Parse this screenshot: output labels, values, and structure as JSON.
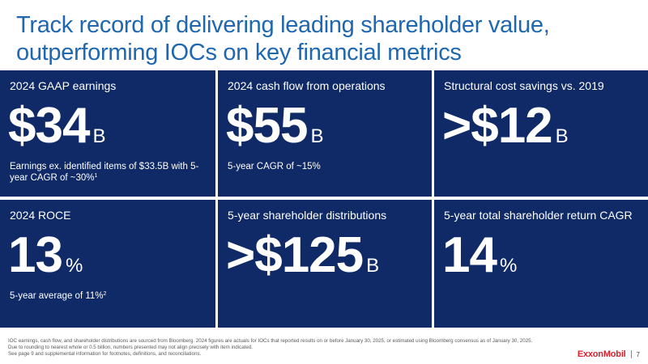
{
  "title": {
    "line1": "Track record of delivering leading shareholder value,",
    "line2": "outperforming IOCs on key financial metrics"
  },
  "cards": [
    {
      "label": "2024 GAAP earnings",
      "value": "$34",
      "unit": "B",
      "note": "Earnings ex. identified items of $33.5B with 5-year CAGR of ~30%",
      "note_sup": "1"
    },
    {
      "label": "2024 cash flow from operations",
      "value": "$55",
      "unit": "B",
      "note": "5-year CAGR of ~15%",
      "note_sup": ""
    },
    {
      "label": "Structural cost savings vs. 2019",
      "value": ">$12",
      "unit": "B",
      "note": "",
      "note_sup": ""
    },
    {
      "label": "2024 ROCE",
      "value": "13",
      "unit": "%",
      "note": "5-year average of 11%",
      "note_sup": "2"
    },
    {
      "label": "5-year shareholder distributions",
      "value": ">$125",
      "unit": "B",
      "note": "",
      "note_sup": ""
    },
    {
      "label": "5-year total shareholder return CAGR",
      "value": "14",
      "unit": "%",
      "note": "",
      "note_sup": ""
    }
  ],
  "footnotes": [
    "IOC earnings, cash flow, and shareholder distributions are sourced from Bloomberg. 2024 figures are actuals for IOCs that reported results on or before January 30, 2025, or estimated using Bloomberg consensus as of January 30, 2025.",
    "Due to rounding to nearest whole or 0.5 billion, numbers presented may not align precisely with item indicated.",
    "See page 9 and supplemental information for footnotes, definitions, and reconciliations."
  ],
  "brand": {
    "logo_text": "ExxonMobil",
    "page_number": "7",
    "accent_color": "#d7212d",
    "card_color": "#0f2a66",
    "title_color": "#1f67b0"
  }
}
